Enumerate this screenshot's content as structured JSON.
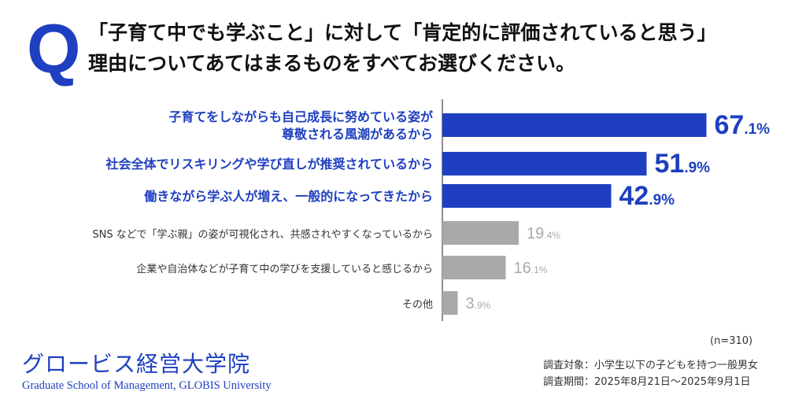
{
  "header": {
    "q_mark": "Q",
    "question_line1": "「子育て中でも学ぶこと」に対して「肯定的に評価されていると思う」",
    "question_line2": "理由についてあてはまるものをすべてお選びください。"
  },
  "chart_data": {
    "type": "bar",
    "orientation": "horizontal",
    "unit": "%",
    "xlim": [
      0,
      100
    ],
    "highlight_color": "#1e3fbf",
    "other_color": "#a9a9a9",
    "categories": [
      "子育てをしながらも自己成長に努めている姿が尊敬される風潮があるから",
      "社会全体でリスキリングや学び直しが推奨されているから",
      "働きながら学ぶ人が増え、一般的になってきたから",
      "SNS などで「学ぶ親」の姿が可視化され、共感されやすくなっているから",
      "企業や自治体などが子育て中の学びを支援していると感じるから",
      "その他"
    ],
    "category_lines": [
      [
        "子育てをしながらも自己成長に努めている姿が",
        "尊敬される風潮があるから"
      ],
      [
        "社会全体でリスキリングや学び直しが推奨されているから"
      ],
      [
        "働きながら学ぶ人が増え、一般的になってきたから"
      ],
      [
        "SNS などで「学ぶ親」の姿が可視化され、共感されやすくなっているから"
      ],
      [
        "企業や自治体などが子育て中の学びを支援していると感じるから"
      ],
      [
        "その他"
      ]
    ],
    "values": [
      67.1,
      51.9,
      42.9,
      19.4,
      16.1,
      3.9
    ],
    "highlighted": [
      true,
      true,
      true,
      false,
      false,
      false
    ]
  },
  "footer": {
    "n": "(n=310)",
    "survey_target": "調査対象：小学生以下の子どもを持つ一般男女",
    "survey_period": "調査期間：2025年8月21日〜2025年9月1日",
    "logo_jp": "グロービス経営大学院",
    "logo_en": "Graduate School of Management, GLOBIS University"
  }
}
